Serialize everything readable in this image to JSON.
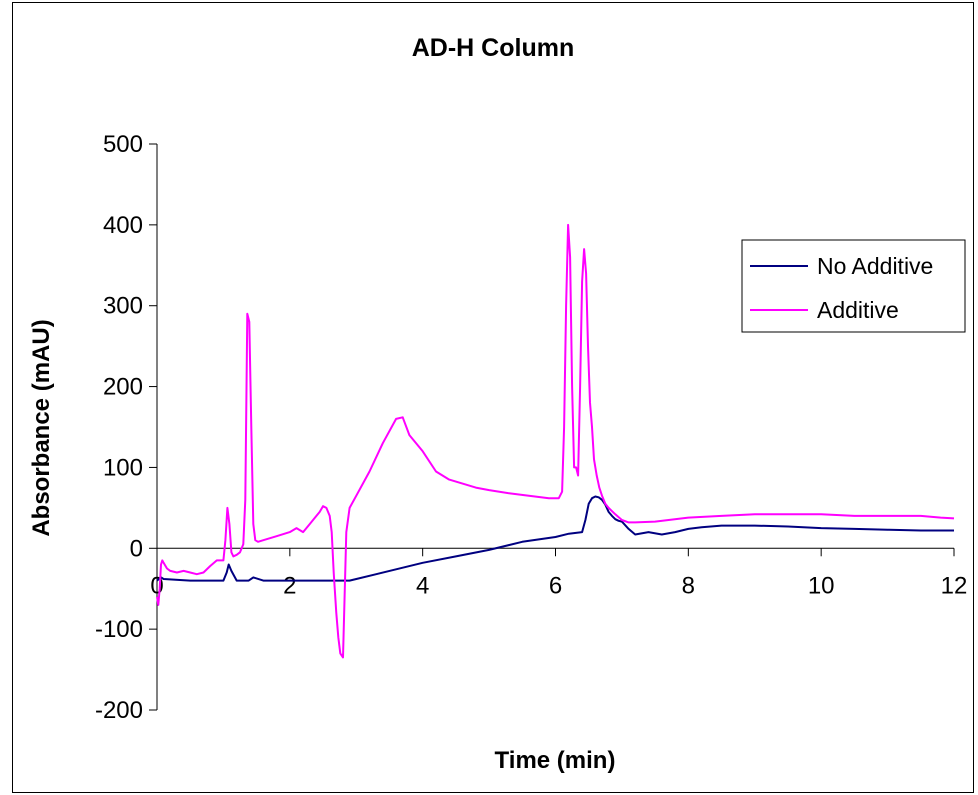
{
  "chart_data": {
    "type": "line",
    "title": "AD-H Column",
    "xlabel": "Time (min)",
    "ylabel": "Absorbance (mAU)",
    "xlim": [
      0,
      12
    ],
    "ylim": [
      -200,
      500
    ],
    "xticks": [
      0,
      2,
      4,
      6,
      8,
      10,
      12
    ],
    "yticks": [
      -200,
      -100,
      0,
      100,
      200,
      300,
      400,
      500
    ],
    "grid": false,
    "legend_position": "right",
    "series": [
      {
        "name": "No Additive",
        "color": "#000080",
        "x": [
          0,
          0.03,
          0.06,
          0.1,
          0.5,
          1.0,
          1.05,
          1.08,
          1.12,
          1.2,
          1.3,
          1.38,
          1.45,
          1.6,
          2.0,
          2.4,
          2.7,
          2.9,
          3.0,
          3.3,
          3.6,
          4.0,
          4.5,
          5.0,
          5.5,
          6.0,
          6.2,
          6.4,
          6.45,
          6.5,
          6.55,
          6.6,
          6.65,
          6.7,
          6.75,
          6.8,
          6.85,
          6.9,
          6.95,
          7.0,
          7.1,
          7.2,
          7.4,
          7.6,
          7.8,
          8.0,
          8.2,
          8.5,
          9.0,
          9.5,
          10.0,
          10.5,
          11.0,
          11.5,
          12.0
        ],
        "y": [
          -40,
          -38,
          -36,
          -38,
          -40,
          -40,
          -30,
          -20,
          -28,
          -40,
          -40,
          -40,
          -36,
          -40,
          -40,
          -40,
          -40,
          -40,
          -38,
          -32,
          -26,
          -18,
          -10,
          -2,
          8,
          14,
          18,
          20,
          35,
          55,
          62,
          64,
          63,
          60,
          54,
          45,
          40,
          36,
          34,
          33,
          24,
          17,
          20,
          17,
          20,
          24,
          26,
          28,
          28,
          27,
          25,
          24,
          23,
          22,
          22
        ]
      },
      {
        "name": "Additive",
        "color": "#FF00FF",
        "x": [
          0,
          0.02,
          0.04,
          0.06,
          0.08,
          0.1,
          0.15,
          0.2,
          0.3,
          0.4,
          0.5,
          0.6,
          0.7,
          0.8,
          0.9,
          0.95,
          1.0,
          1.03,
          1.06,
          1.09,
          1.12,
          1.15,
          1.2,
          1.25,
          1.3,
          1.33,
          1.36,
          1.39,
          1.42,
          1.45,
          1.48,
          1.52,
          1.6,
          1.8,
          2.0,
          2.1,
          2.2,
          2.3,
          2.4,
          2.45,
          2.5,
          2.55,
          2.6,
          2.63,
          2.66,
          2.7,
          2.73,
          2.76,
          2.8,
          2.85,
          2.9,
          3.0,
          3.2,
          3.4,
          3.6,
          3.7,
          3.8,
          4.0,
          4.2,
          4.4,
          4.6,
          4.8,
          5.0,
          5.3,
          5.6,
          5.9,
          6.05,
          6.1,
          6.13,
          6.16,
          6.19,
          6.22,
          6.25,
          6.28,
          6.31,
          6.34,
          6.37,
          6.4,
          6.43,
          6.46,
          6.49,
          6.52,
          6.55,
          6.58,
          6.62,
          6.66,
          6.7,
          6.75,
          6.8,
          6.9,
          7.0,
          7.1,
          7.2,
          7.5,
          8.0,
          8.5,
          9.0,
          9.5,
          10.0,
          10.5,
          11.0,
          11.5,
          11.8,
          12.0
        ],
        "y": [
          -60,
          -70,
          -50,
          -20,
          -15,
          -18,
          -25,
          -28,
          -30,
          -28,
          -30,
          -32,
          -30,
          -22,
          -15,
          -15,
          -15,
          10,
          50,
          30,
          -5,
          -10,
          -8,
          -5,
          5,
          60,
          290,
          280,
          150,
          30,
          10,
          8,
          10,
          15,
          20,
          25,
          20,
          30,
          40,
          45,
          52,
          50,
          40,
          20,
          -30,
          -80,
          -110,
          -130,
          -135,
          20,
          50,
          65,
          95,
          130,
          160,
          162,
          140,
          120,
          95,
          85,
          80,
          75,
          72,
          68,
          65,
          62,
          62,
          70,
          150,
          300,
          400,
          360,
          200,
          100,
          100,
          90,
          200,
          330,
          370,
          340,
          250,
          180,
          150,
          110,
          90,
          75,
          65,
          55,
          50,
          42,
          35,
          32,
          32,
          33,
          38,
          40,
          42,
          42,
          42,
          40,
          40,
          40,
          38,
          37
        ]
      }
    ]
  }
}
